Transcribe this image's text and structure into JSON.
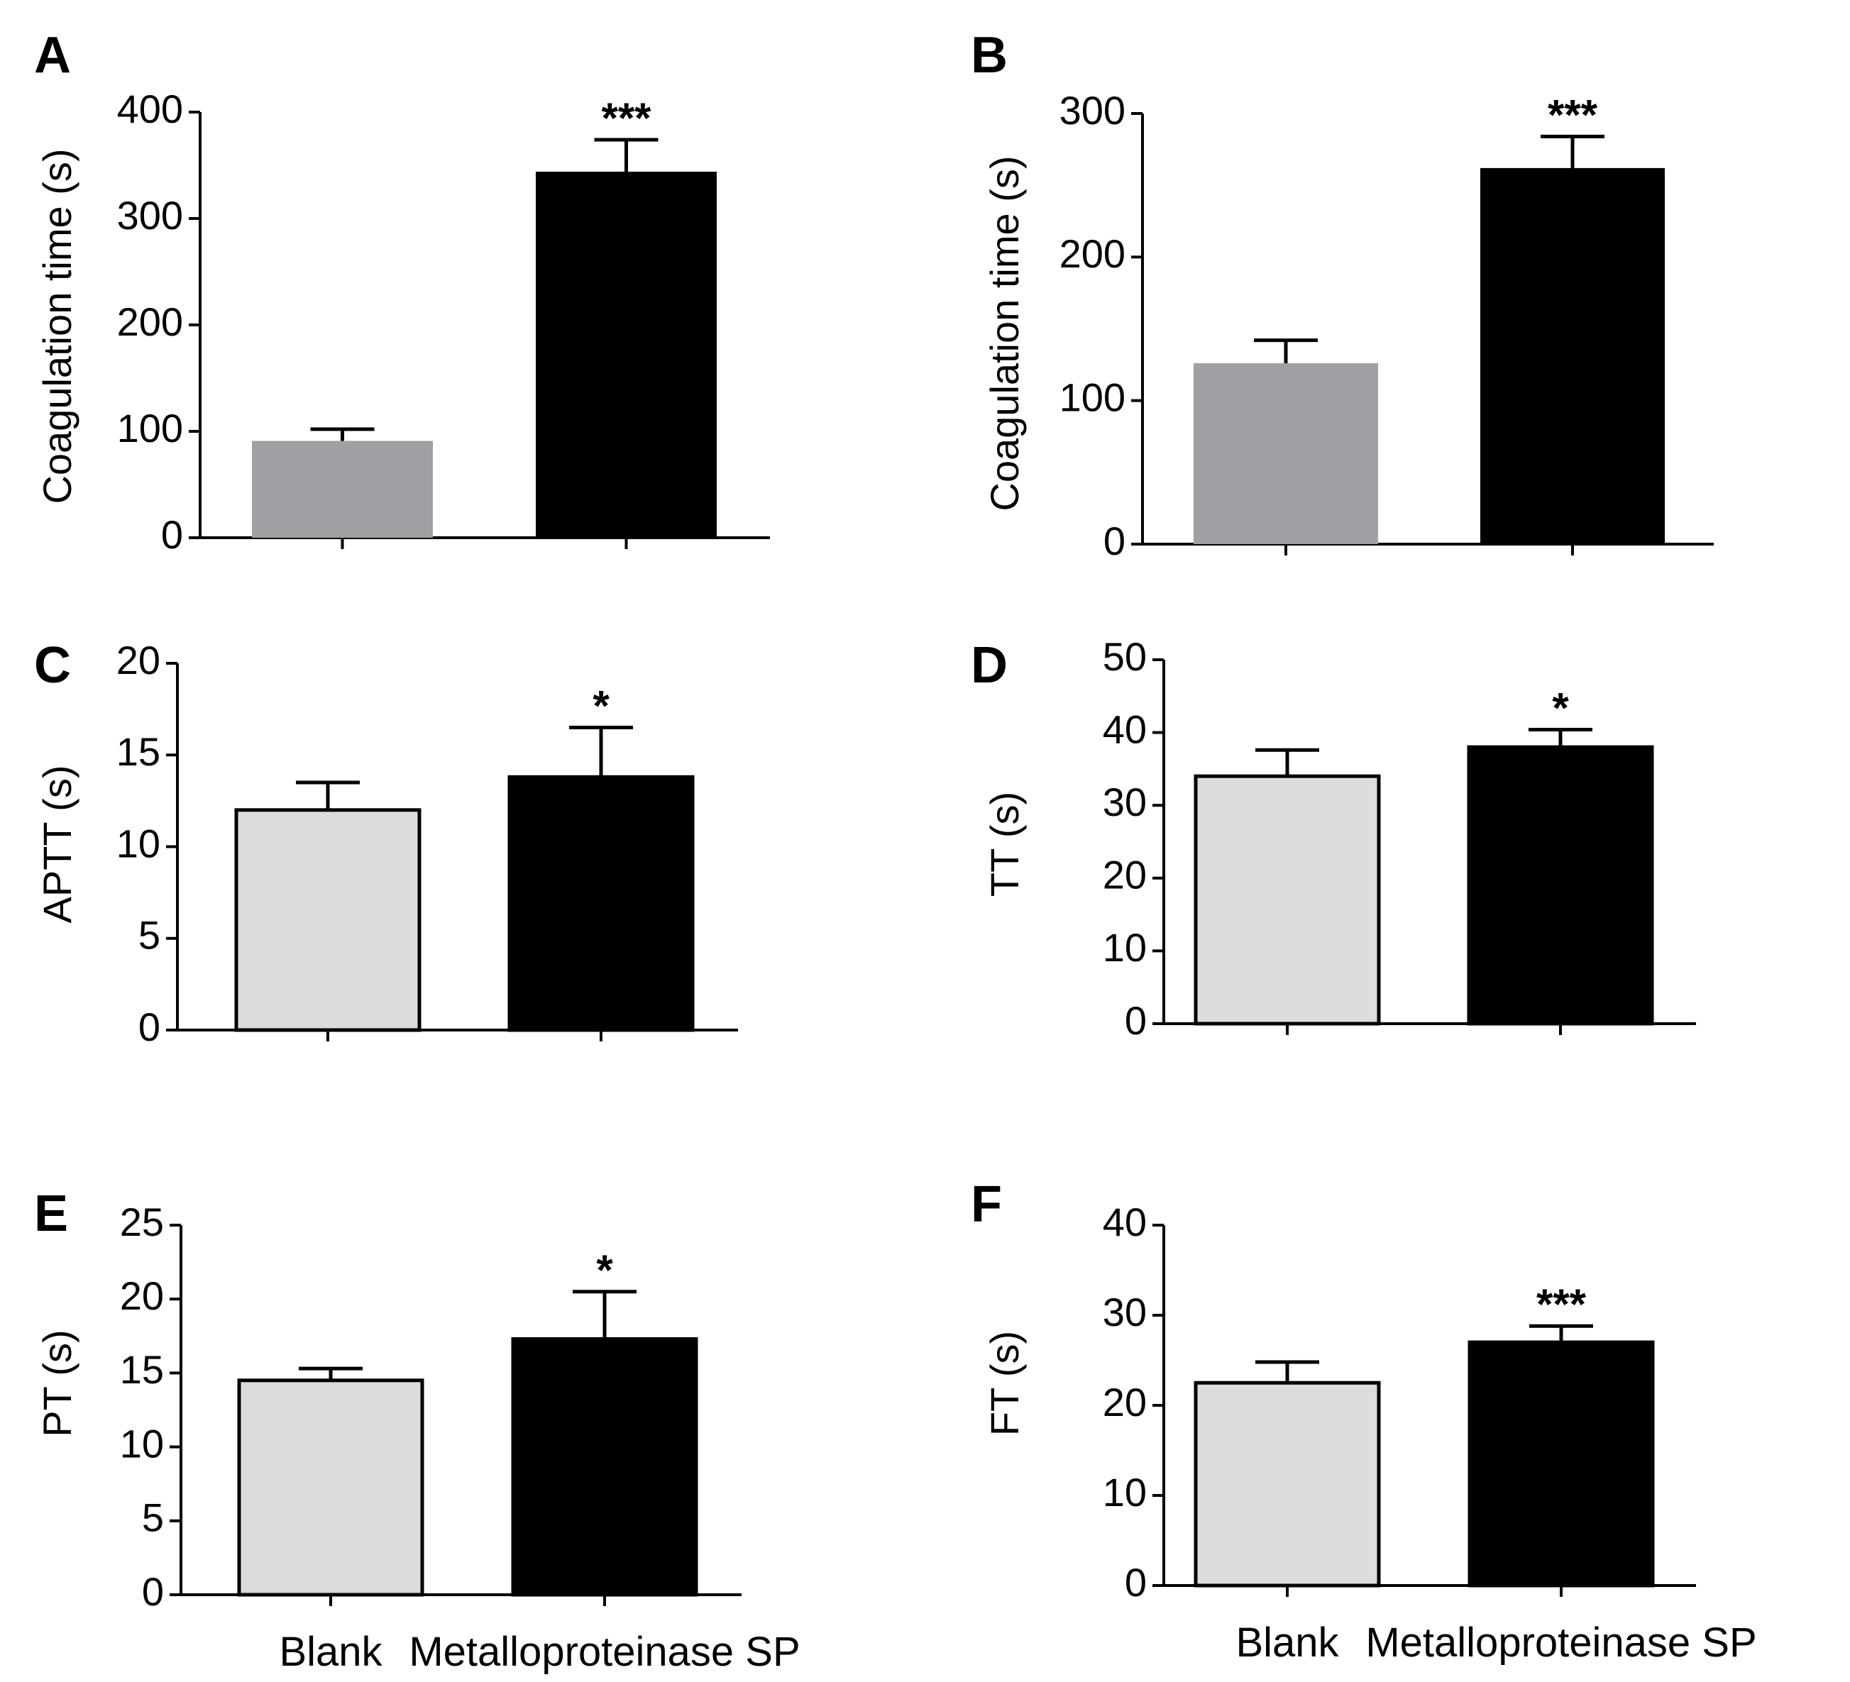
{
  "chart_data": [
    {
      "panel": "A",
      "type": "bar",
      "ylabel": "Coagulation time (s)",
      "ylim": [
        0,
        400
      ],
      "yticks": [
        0,
        100,
        200,
        300,
        400
      ],
      "categories": [
        "Blank",
        "Metalloproteinase SP"
      ],
      "values": [
        91,
        344
      ],
      "errors": [
        11,
        30
      ],
      "colors": [
        "#a09fa4",
        "#000000"
      ],
      "outlined": false,
      "significance": [
        "",
        "***"
      ],
      "show_category_labels": false
    },
    {
      "panel": "B",
      "type": "bar",
      "ylabel": "Coagulation time (s)",
      "ylim": [
        0,
        300
      ],
      "yticks": [
        0,
        100,
        200,
        300
      ],
      "categories": [
        "Blank",
        "Metalloproteinase SP"
      ],
      "values": [
        126,
        262
      ],
      "errors": [
        16,
        22
      ],
      "colors": [
        "#a09fa4",
        "#000000"
      ],
      "outlined": false,
      "significance": [
        "",
        "***"
      ],
      "show_category_labels": false
    },
    {
      "panel": "C",
      "type": "bar",
      "ylabel": "APTT (s)",
      "ylim": [
        0,
        20
      ],
      "yticks": [
        0,
        5,
        10,
        15,
        20
      ],
      "categories": [
        "Blank",
        "Metalloproteinase SP"
      ],
      "values": [
        12.0,
        13.8
      ],
      "errors": [
        1.5,
        2.7
      ],
      "colors": [
        "#dcdcda",
        "#000000"
      ],
      "outlined": true,
      "significance": [
        "",
        "*"
      ],
      "show_category_labels": false
    },
    {
      "panel": "D",
      "type": "bar",
      "ylabel": "TT (s)",
      "ylim": [
        0,
        50
      ],
      "yticks": [
        0,
        10,
        20,
        30,
        40,
        50
      ],
      "categories": [
        "Blank",
        "Metalloproteinase SP"
      ],
      "values": [
        34,
        38
      ],
      "errors": [
        3.6,
        2.4
      ],
      "colors": [
        "#dcdcda",
        "#000000"
      ],
      "outlined": true,
      "significance": [
        "",
        "*"
      ],
      "show_category_labels": false
    },
    {
      "panel": "E",
      "type": "bar",
      "ylabel": "PT (s)",
      "ylim": [
        0,
        25
      ],
      "yticks": [
        0,
        5,
        10,
        15,
        20,
        25
      ],
      "categories": [
        "Blank",
        "Metalloproteinase SP"
      ],
      "values": [
        14.5,
        17.3
      ],
      "errors": [
        0.8,
        3.2
      ],
      "colors": [
        "#dcdcda",
        "#000000"
      ],
      "outlined": true,
      "significance": [
        "",
        "*"
      ],
      "show_category_labels": true
    },
    {
      "panel": "F",
      "type": "bar",
      "ylabel": "FT (s)",
      "ylim": [
        0,
        40
      ],
      "yticks": [
        0,
        10,
        20,
        30,
        40
      ],
      "categories": [
        "Blank",
        "Metalloproteinase SP"
      ],
      "values": [
        22.5,
        27
      ],
      "errors": [
        2.3,
        1.8
      ],
      "colors": [
        "#dcdcda",
        "#000000"
      ],
      "outlined": true,
      "significance": [
        "",
        "***"
      ],
      "show_category_labels": true
    }
  ]
}
